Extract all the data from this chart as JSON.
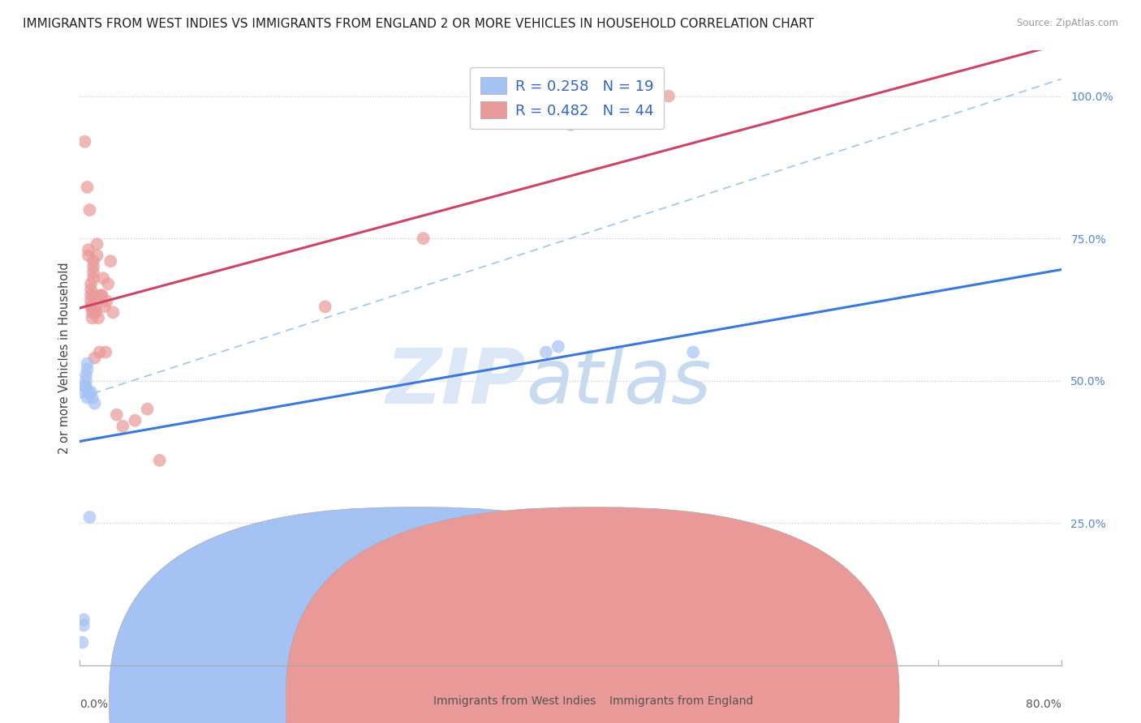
{
  "title": "IMMIGRANTS FROM WEST INDIES VS IMMIGRANTS FROM ENGLAND 2 OR MORE VEHICLES IN HOUSEHOLD CORRELATION CHART",
  "source": "Source: ZipAtlas.com",
  "ylabel": "2 or more Vehicles in Household",
  "west_indies_R": 0.258,
  "west_indies_N": 19,
  "england_R": 0.482,
  "england_N": 44,
  "west_indies_color": "#a4c2f4",
  "england_color": "#ea9999",
  "west_indies_line_color": "#3c78d8",
  "england_line_color": "#cc4466",
  "diagonal_line_color": "#9fc5e8",
  "west_indies_x": [
    0.002,
    0.003,
    0.003,
    0.004,
    0.004,
    0.005,
    0.005,
    0.005,
    0.006,
    0.006,
    0.006,
    0.007,
    0.008,
    0.009,
    0.01,
    0.012,
    0.38,
    0.39,
    0.5
  ],
  "west_indies_y": [
    0.04,
    0.07,
    0.08,
    0.48,
    0.49,
    0.49,
    0.5,
    0.51,
    0.52,
    0.53,
    0.47,
    0.48,
    0.26,
    0.48,
    0.47,
    0.46,
    0.55,
    0.56,
    0.55
  ],
  "england_x": [
    0.004,
    0.006,
    0.007,
    0.007,
    0.008,
    0.009,
    0.009,
    0.009,
    0.009,
    0.009,
    0.01,
    0.01,
    0.01,
    0.011,
    0.011,
    0.011,
    0.011,
    0.012,
    0.012,
    0.012,
    0.013,
    0.013,
    0.014,
    0.014,
    0.015,
    0.016,
    0.017,
    0.018,
    0.019,
    0.02,
    0.021,
    0.022,
    0.023,
    0.025,
    0.027,
    0.03,
    0.035,
    0.045,
    0.055,
    0.065,
    0.2,
    0.28,
    0.4,
    0.48
  ],
  "england_y": [
    0.92,
    0.84,
    0.72,
    0.73,
    0.8,
    0.63,
    0.64,
    0.65,
    0.66,
    0.67,
    0.61,
    0.62,
    0.63,
    0.68,
    0.69,
    0.7,
    0.71,
    0.65,
    0.54,
    0.62,
    0.62,
    0.63,
    0.74,
    0.72,
    0.61,
    0.55,
    0.65,
    0.65,
    0.68,
    0.63,
    0.55,
    0.64,
    0.67,
    0.71,
    0.62,
    0.44,
    0.42,
    0.43,
    0.45,
    0.36,
    0.63,
    0.75,
    0.95,
    1.0
  ],
  "background_color": "#ffffff",
  "grid_color": "#cccccc",
  "watermark_zip": "ZIP",
  "watermark_atlas": "atlas",
  "watermark_color": "#ddeeff",
  "xlim": [
    0.0,
    0.8
  ],
  "ylim": [
    0.0,
    1.08
  ],
  "y_ticks": [
    0.25,
    0.5,
    0.75,
    1.0
  ],
  "y_tick_labels": [
    "25.0%",
    "50.0%",
    "75.0%",
    "100.0%"
  ],
  "legend_label_wi": "Immigrants from West Indies",
  "legend_label_en": "Immigrants from England",
  "legend_R_wi": "R = 0.258",
  "legend_N_wi": "N = 19",
  "legend_R_en": "R = 0.482",
  "legend_N_en": "N = 44"
}
